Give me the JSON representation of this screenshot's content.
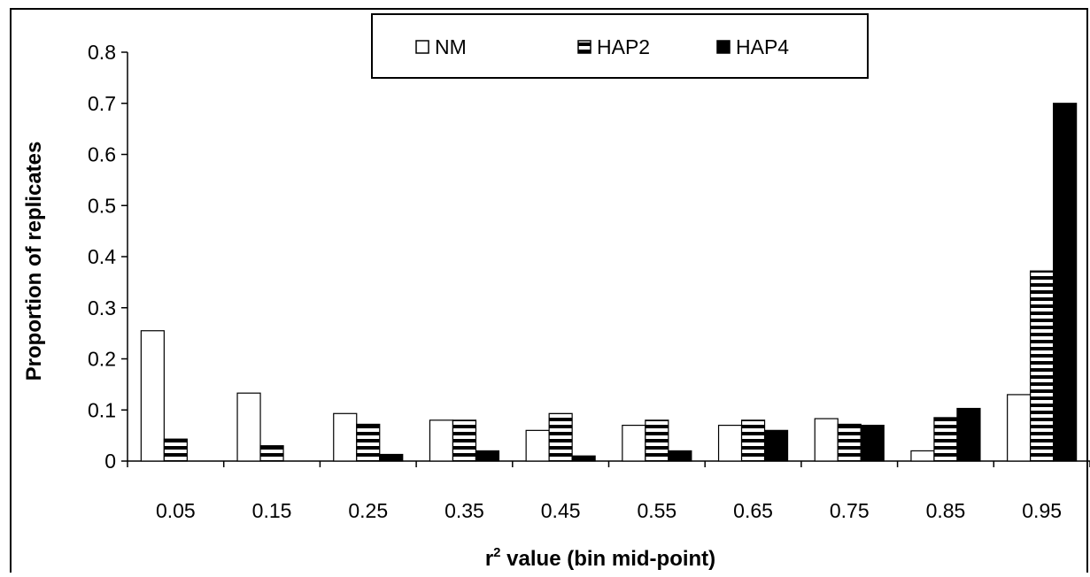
{
  "chart_data": {
    "type": "bar",
    "xlabel_prefix": "r",
    "xlabel_superscript": "2",
    "xlabel_suffix": " value (bin mid-point)",
    "ylabel": "Proportion of replicates",
    "ylim": [
      0,
      0.8
    ],
    "yticks": [
      "0",
      "0.1",
      "0.2",
      "0.3",
      "0.4",
      "0.5",
      "0.6",
      "0.7",
      "0.8"
    ],
    "categories": [
      "0.05",
      "0.15",
      "0.25",
      "0.35",
      "0.45",
      "0.55",
      "0.65",
      "0.75",
      "0.85",
      "0.95"
    ],
    "series": [
      {
        "name": "NM",
        "fill": "white",
        "values": [
          0.255,
          0.133,
          0.093,
          0.08,
          0.06,
          0.07,
          0.07,
          0.083,
          0.02,
          0.13
        ]
      },
      {
        "name": "HAP2",
        "fill": "horizontal-stripes",
        "values": [
          0.043,
          0.03,
          0.072,
          0.08,
          0.093,
          0.08,
          0.08,
          0.072,
          0.085,
          0.372
        ]
      },
      {
        "name": "HAP4",
        "fill": "black",
        "values": [
          0.0,
          0.0,
          0.013,
          0.02,
          0.01,
          0.02,
          0.06,
          0.07,
          0.103,
          0.7
        ]
      }
    ],
    "legend_position": "top-center",
    "grid": false,
    "colors": {
      "bar_outline": "#000000",
      "solid": "#000000",
      "empty": "#ffffff"
    }
  }
}
